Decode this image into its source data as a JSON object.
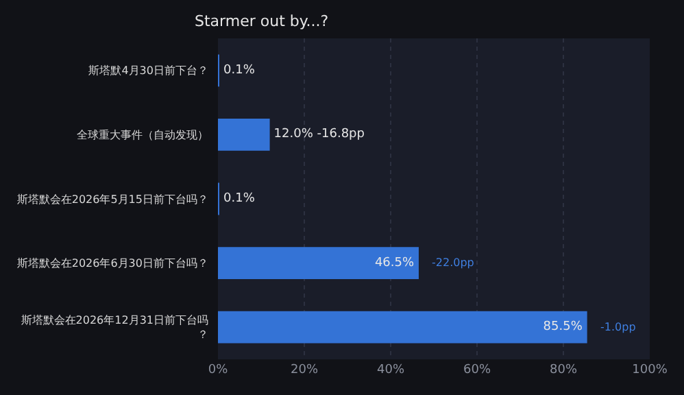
{
  "chart_data": {
    "type": "bar",
    "orientation": "horizontal",
    "title": "Starmer out by...?",
    "categories": [
      "斯塔默4月30日前下台？",
      "全球重大事件（自动发现）",
      "斯塔默会在2026年5月15日前下台吗？",
      "斯塔默会在2026年6月30日前下台吗？",
      "斯塔默会在2026年12月31日前下台吗？"
    ],
    "values": [
      0.1,
      12.0,
      0.1,
      46.5,
      85.5
    ],
    "color": "#3473d6",
    "value_labels": [
      "0.1%",
      "12.0% -16.8pp",
      "0.1%",
      "46.5%",
      "85.5%"
    ],
    "annotations": [
      {
        "text": "-22.0pp",
        "x": 46.5,
        "y": "斯塔默会在2026年6月30日前下台吗？"
      },
      {
        "text": "-1.0pp",
        "x": 85.5,
        "y": "斯塔默会在2026年12月31日前下台吗？"
      }
    ],
    "xlim": [
      0,
      100
    ],
    "xticks": [
      {
        "value": 0,
        "label": "0%"
      },
      {
        "value": 20,
        "label": "20%"
      },
      {
        "value": 40,
        "label": "40%"
      },
      {
        "value": 60,
        "label": "60%"
      },
      {
        "value": 80,
        "label": "80%"
      },
      {
        "value": 100,
        "label": "100%"
      }
    ],
    "grid": "x",
    "legend": false
  }
}
